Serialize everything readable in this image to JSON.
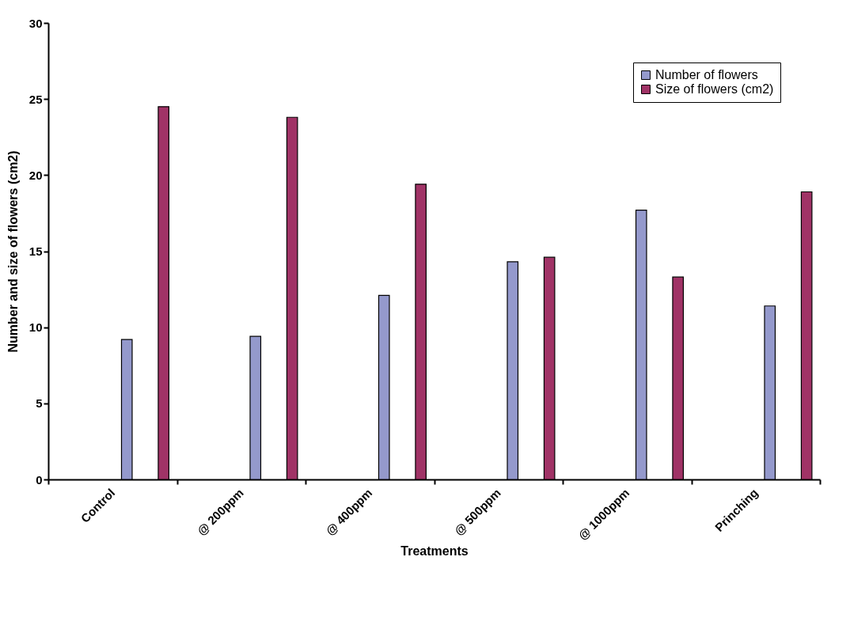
{
  "chart_data": {
    "type": "bar",
    "xlabel": "Treatments",
    "ylabel": "Number and size of flowers (cm2)",
    "categories": [
      "Control",
      "@ 200ppm",
      "@ 400ppm",
      "@ 500ppm",
      "@ 1000ppm",
      "Prinching"
    ],
    "series": [
      {
        "name": "Number of flowers",
        "color": "#9499cc",
        "values": [
          9.2,
          9.4,
          12.1,
          14.3,
          17.7,
          11.4
        ]
      },
      {
        "name": "Size of flowers (cm2)",
        "color": "#a03366",
        "values": [
          24.5,
          23.8,
          19.4,
          14.6,
          13.3,
          18.9
        ]
      }
    ],
    "ylim": [
      0,
      30
    ],
    "yticks": [
      0,
      5,
      10,
      15,
      20,
      25,
      30
    ],
    "grid": false,
    "legend": "top right"
  }
}
